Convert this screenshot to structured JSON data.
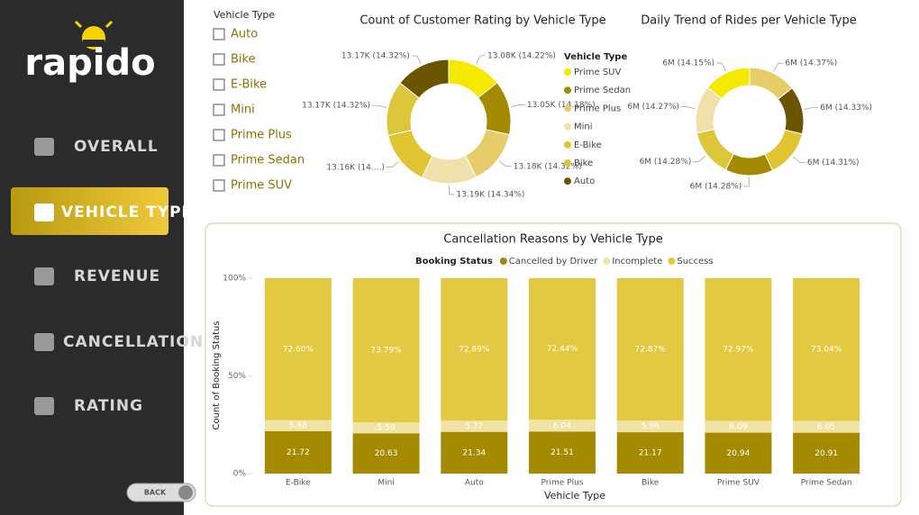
{
  "nav": {
    "logo": "rapido",
    "items": [
      "OVERALL",
      "VEHICLE TYPE",
      "REVENUE",
      "CANCELLATION",
      "RATING"
    ],
    "back": "BACK"
  },
  "slicer": {
    "title": "Vehicle Type",
    "options": [
      "Auto",
      "Bike",
      "E-Bike",
      "Mini",
      "Prime Plus",
      "Prime Sedan",
      "Prime SUV"
    ]
  },
  "chart_data": [
    {
      "type": "donut",
      "title": "Count of Customer Rating by Vehicle Type",
      "legend_title": "Vehicle Type",
      "categories": [
        "Prime SUV",
        "Prime Sedan",
        "Prime Plus",
        "Mini",
        "E-Bike",
        "Bike",
        "Auto"
      ],
      "values": [
        13080,
        13050,
        13180,
        13190,
        13160,
        13170,
        13170
      ],
      "value_labels": [
        "13.08K (14.22%)",
        "13.05K (14.18%)",
        "13.18K (14.32%)",
        "13.19K (14.34%)",
        "13.16K (14....)",
        "13.17K (14.32%)",
        "13.17K (14.32%)"
      ],
      "colors": [
        "#f5e900",
        "#a38a00",
        "#e6cd6a",
        "#f0e1aa",
        "#e0c431",
        "#dcc73a",
        "#6b5500"
      ]
    },
    {
      "type": "donut",
      "title": "Daily Trend of Rides per Vehicle Type",
      "values": [
        14.37,
        14.33,
        14.31,
        14.28,
        14.28,
        14.27,
        14.15
      ],
      "value_labels": [
        "6M (14.37%)",
        "6M (14.33%)",
        "6M (14.31%)",
        "6M (14.28%)",
        "6M (14.28%)",
        "6M (14.27%)",
        "6M (14.15%)"
      ],
      "colors": [
        "#e6cd6a",
        "#6b5500",
        "#e0c431",
        "#a38a00",
        "#dcc73a",
        "#f0e1aa",
        "#f5e900"
      ]
    },
    {
      "type": "bar",
      "title": "Cancellation Reasons by Vehicle Type",
      "legend_title": "Booking Status",
      "x_label": "Vehicle Type",
      "y_label": "Count of Booking Status",
      "stacked": true,
      "categories": [
        "E-Bike",
        "Mini",
        "Auto",
        "Prime Plus",
        "Bike",
        "Prime SUV",
        "Prime Sedan"
      ],
      "series": [
        {
          "name": "Cancelled by Driver",
          "color": "#a38a00",
          "values": [
            21.72,
            20.63,
            21.34,
            21.51,
            21.17,
            20.94,
            20.91
          ]
        },
        {
          "name": "Incomplete",
          "color": "#f0e3a6",
          "values": [
            5.68,
            5.59,
            5.77,
            6.04,
            5.96,
            6.09,
            6.05
          ]
        },
        {
          "name": "Success",
          "color": "#e2c941",
          "values": [
            72.6,
            73.79,
            72.89,
            72.44,
            72.87,
            72.97,
            73.04
          ],
          "value_labels": [
            "72.60%",
            "73.79%",
            "72.89%",
            "72.44%",
            "72.87%",
            "72.97%",
            "73.04%"
          ]
        }
      ],
      "ylim": [
        0,
        100
      ],
      "yticks": [
        {
          "value": 0,
          "label": "0%"
        },
        {
          "value": 50,
          "label": "50%"
        },
        {
          "value": 100,
          "label": "100%"
        }
      ]
    }
  ]
}
